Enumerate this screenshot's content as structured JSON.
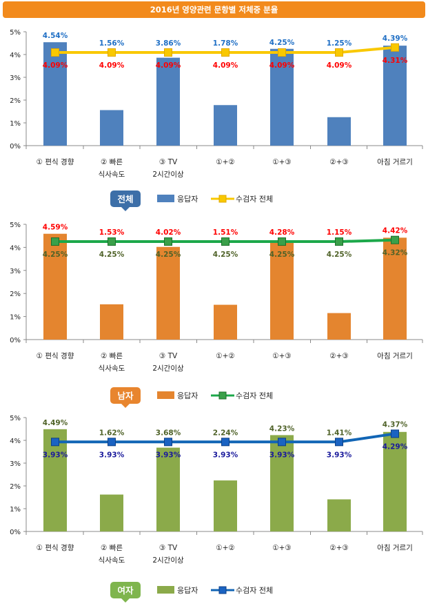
{
  "header": {
    "title": "2016년 영양관련 문항별 저체중 분율"
  },
  "colors": {
    "blue": "#4F81BD",
    "orange": "#E4852F",
    "green": "#8BAA4A",
    "yellow_line": "#F9C800",
    "green_line": "#1CA84A",
    "blue_line": "#1165B5",
    "red_label": "#FF0000",
    "blue_label": "#1F6FC5",
    "green_label": "#4F6228",
    "navy_label": "#1A1A9C"
  },
  "chart_data": [
    {
      "type": "bar",
      "group_label": "전체",
      "categories": [
        [
          "① 편식 경향"
        ],
        [
          "② 빠른",
          "식사속도"
        ],
        [
          "③ TV",
          "2시간이상"
        ],
        [
          "①+②"
        ],
        [
          "①+③"
        ],
        [
          "②+③"
        ],
        [
          "아침 거르기"
        ]
      ],
      "y_ticks": [
        "0%",
        "1%",
        "2%",
        "3%",
        "4%",
        "5%"
      ],
      "ylim": [
        0,
        5
      ],
      "series": [
        {
          "name": "응답자",
          "type": "bar",
          "values": [
            4.54,
            1.56,
            3.86,
            1.78,
            4.25,
            1.25,
            4.39
          ],
          "labels": [
            "4.54%",
            "1.56%",
            "3.86%",
            "1.78%",
            "4.25%",
            "1.25%",
            "4.39%"
          ]
        },
        {
          "name": "수검자 전체",
          "type": "line",
          "values": [
            4.09,
            4.09,
            4.09,
            4.09,
            4.09,
            4.09,
            4.31
          ],
          "labels": [
            "4.09%",
            "4.09%",
            "4.09%",
            "4.09%",
            "4.09%",
            "4.09%",
            "4.31%"
          ]
        }
      ]
    },
    {
      "type": "bar",
      "group_label": "남자",
      "categories": [
        [
          "① 편식 경향"
        ],
        [
          "② 빠른",
          "식사속도"
        ],
        [
          "③ TV",
          "2시간이상"
        ],
        [
          "①+②"
        ],
        [
          "①+③"
        ],
        [
          "②+③"
        ],
        [
          "아침 거르기"
        ]
      ],
      "y_ticks": [
        "0%",
        "1%",
        "2%",
        "3%",
        "4%",
        "5%"
      ],
      "ylim": [
        0,
        5
      ],
      "series": [
        {
          "name": "응답자",
          "type": "bar",
          "values": [
            4.59,
            1.53,
            4.02,
            1.51,
            4.28,
            1.15,
            4.42
          ],
          "labels": [
            "4.59%",
            "1.53%",
            "4.02%",
            "1.51%",
            "4.28%",
            "1.15%",
            "4.42%"
          ]
        },
        {
          "name": "수검자 전체",
          "type": "line",
          "values": [
            4.25,
            4.25,
            4.25,
            4.25,
            4.25,
            4.25,
            4.32
          ],
          "labels": [
            "4.25%",
            "4.25%",
            "4.25%",
            "4.25%",
            "4.25%",
            "4.25%",
            "4.32%"
          ]
        }
      ]
    },
    {
      "type": "bar",
      "group_label": "여자",
      "categories": [
        [
          "① 편식 경향"
        ],
        [
          "② 빠른",
          "식사속도"
        ],
        [
          "③ TV",
          "2시간이상"
        ],
        [
          "①+②"
        ],
        [
          "①+③"
        ],
        [
          "②+③"
        ],
        [
          "아침 거르기"
        ]
      ],
      "y_ticks": [
        "0%",
        "1%",
        "2%",
        "3%",
        "4%",
        "5%"
      ],
      "ylim": [
        0,
        5
      ],
      "series": [
        {
          "name": "응답자",
          "type": "bar",
          "values": [
            4.49,
            1.62,
            3.68,
            2.24,
            4.23,
            1.41,
            4.37
          ],
          "labels": [
            "4.49%",
            "1.62%",
            "3.68%",
            "2.24%",
            "4.23%",
            "1.41%",
            "4.37%"
          ]
        },
        {
          "name": "수검자 전체",
          "type": "line",
          "values": [
            3.93,
            3.93,
            3.93,
            3.93,
            3.93,
            3.93,
            4.29
          ],
          "labels": [
            "3.93%",
            "3.93%",
            "3.93%",
            "3.93%",
            "3.93%",
            "3.93%",
            "4.29%"
          ]
        }
      ]
    }
  ]
}
